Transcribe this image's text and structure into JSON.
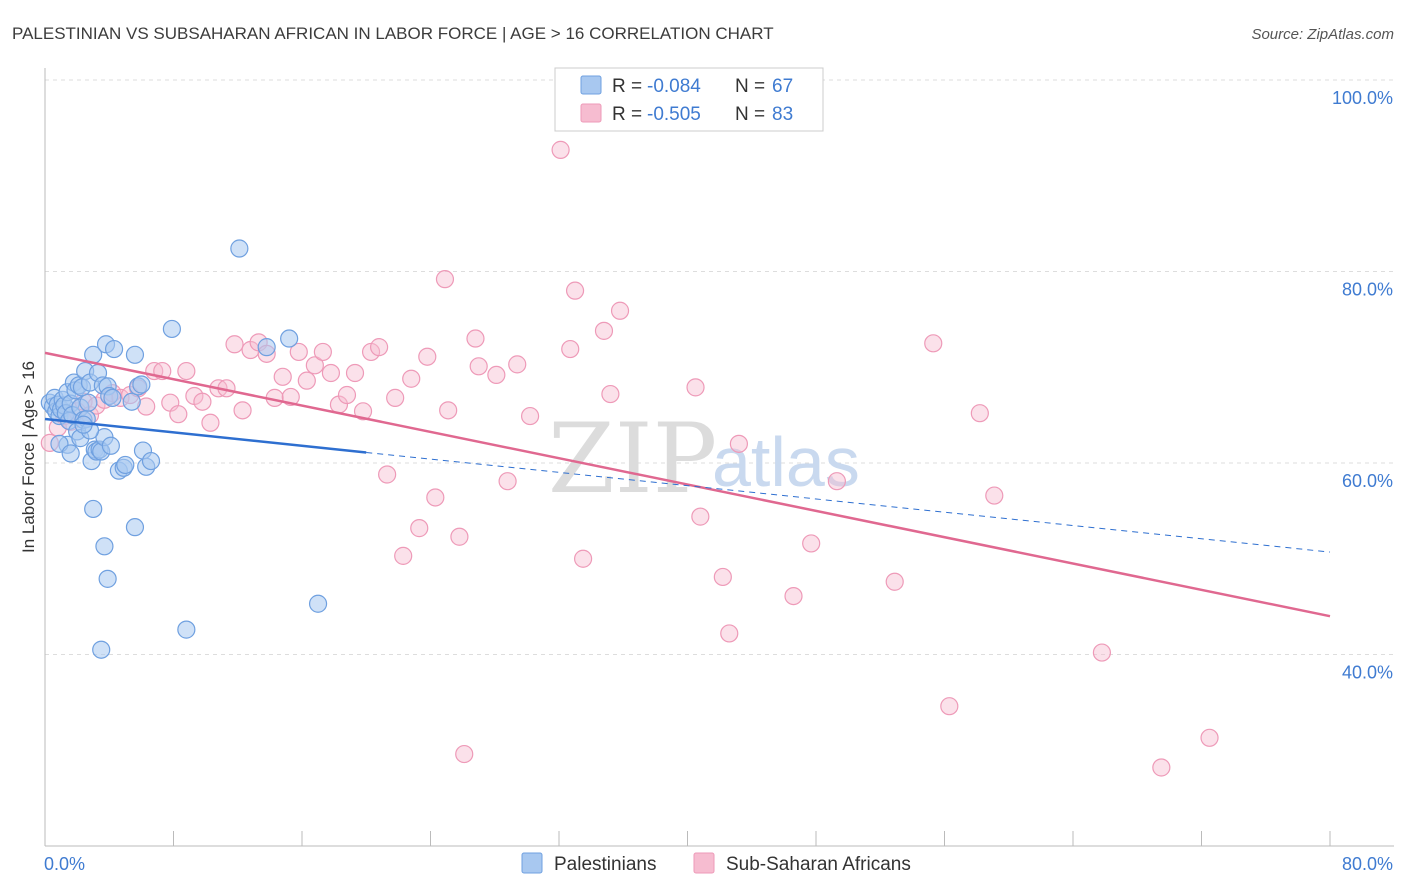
{
  "header": {
    "title": "PALESTINIAN VS SUBSAHARAN AFRICAN IN LABOR FORCE | AGE > 16 CORRELATION CHART",
    "source": "Source: ZipAtlas.com"
  },
  "watermark": {
    "zip": "ZIP",
    "atlas": "atlas"
  },
  "colors": {
    "palestinian_fill": "#a8c8f0",
    "palestinian_stroke": "#6fa0e0",
    "palestinian_line": "#2e6fd0",
    "subsaharan_fill": "#f6bcd0",
    "subsaharan_stroke": "#ee9ab8",
    "subsaharan_line": "#e06890",
    "grid": "#dddddd",
    "tick_text": "#3f7bd1"
  },
  "legend_top": {
    "rows": [
      {
        "r_label": "R = ",
        "r_value": "-0.084",
        "n_label": "N = ",
        "n_value": "67"
      },
      {
        "r_label": "R = ",
        "r_value": "-0.505",
        "n_label": "N = ",
        "n_value": "83"
      }
    ]
  },
  "legend_bottom": {
    "items": [
      "Palestinians",
      "Sub-Saharan Africans"
    ]
  },
  "chart_data": {
    "type": "scatter",
    "title": "PALESTINIAN VS SUBSAHARAN AFRICAN IN LABOR FORCE | AGE > 16 CORRELATION CHART",
    "xlabel": "",
    "ylabel": "In Labor Force | Age > 16",
    "xlim": [
      0,
      80
    ],
    "ylim": [
      20,
      100
    ],
    "x_tick_labels": [
      "0.0%",
      "80.0%"
    ],
    "y_tick_values": [
      40,
      60,
      80,
      100
    ],
    "y_tick_labels": [
      "40.0%",
      "60.0%",
      "80.0%",
      "100.0%"
    ],
    "grid": true,
    "legend_position": "top-center",
    "series": [
      {
        "name": "Palestinians",
        "r": -0.084,
        "n": 67,
        "trend": {
          "x0": 0,
          "y0": 64.6,
          "x1": 20,
          "y1": 61.1,
          "dashed_to_x": 80,
          "dashed_y_end": 50.7
        },
        "points": [
          [
            0.3,
            66.3
          ],
          [
            0.5,
            65.9
          ],
          [
            0.6,
            66.8
          ],
          [
            0.7,
            65.4
          ],
          [
            0.8,
            66.1
          ],
          [
            0.9,
            64.9
          ],
          [
            1.0,
            65.6
          ],
          [
            1.1,
            66.6
          ],
          [
            1.2,
            66.0
          ],
          [
            1.3,
            65.2
          ],
          [
            1.4,
            67.4
          ],
          [
            1.5,
            64.4
          ],
          [
            1.6,
            66.2
          ],
          [
            1.7,
            65.0
          ],
          [
            1.8,
            68.4
          ],
          [
            1.9,
            67.6
          ],
          [
            2.0,
            63.3
          ],
          [
            2.1,
            68.1
          ],
          [
            2.2,
            65.8
          ],
          [
            2.3,
            67.9
          ],
          [
            2.4,
            64.5
          ],
          [
            2.5,
            69.6
          ],
          [
            2.6,
            64.6
          ],
          [
            2.7,
            66.3
          ],
          [
            2.8,
            68.4
          ],
          [
            2.9,
            60.2
          ],
          [
            3.0,
            71.3
          ],
          [
            3.1,
            61.4
          ],
          [
            3.2,
            61.2
          ],
          [
            3.3,
            69.4
          ],
          [
            3.4,
            61.4
          ],
          [
            3.5,
            61.2
          ],
          [
            3.6,
            68.1
          ],
          [
            3.7,
            62.7
          ],
          [
            3.8,
            72.4
          ],
          [
            3.9,
            68.0
          ],
          [
            4.0,
            67.0
          ],
          [
            4.1,
            61.8
          ],
          [
            4.2,
            66.8
          ],
          [
            4.3,
            71.9
          ],
          [
            4.6,
            59.2
          ],
          [
            4.9,
            59.5
          ],
          [
            5.4,
            66.4
          ],
          [
            5.6,
            71.3
          ],
          [
            5.8,
            68.0
          ],
          [
            6.1,
            61.3
          ],
          [
            6.3,
            59.6
          ],
          [
            6.6,
            60.2
          ],
          [
            7.9,
            74.0
          ],
          [
            12.1,
            82.4
          ],
          [
            1.4,
            61.9
          ],
          [
            2.2,
            62.6
          ],
          [
            2.8,
            63.4
          ],
          [
            3.0,
            55.2
          ],
          [
            3.7,
            51.3
          ],
          [
            3.9,
            47.9
          ],
          [
            5.6,
            53.3
          ],
          [
            8.8,
            42.6
          ],
          [
            3.5,
            40.5
          ],
          [
            17.0,
            45.3
          ],
          [
            13.8,
            72.1
          ],
          [
            15.2,
            73.0
          ],
          [
            0.9,
            62.0
          ],
          [
            1.6,
            61.0
          ],
          [
            2.4,
            64.0
          ],
          [
            5.0,
            59.8
          ],
          [
            6.0,
            68.2
          ]
        ]
      },
      {
        "name": "Sub-Saharan Africans",
        "r": -0.505,
        "n": 83,
        "trend": {
          "x0": 0,
          "y0": 71.5,
          "x1": 80,
          "y1": 44.0
        },
        "points": [
          [
            0.3,
            62.1
          ],
          [
            0.8,
            63.7
          ],
          [
            1.2,
            64.9
          ],
          [
            1.6,
            64.3
          ],
          [
            2.0,
            65.4
          ],
          [
            2.4,
            66.4
          ],
          [
            2.8,
            65.0
          ],
          [
            3.2,
            66.0
          ],
          [
            3.7,
            66.6
          ],
          [
            4.2,
            67.3
          ],
          [
            4.7,
            66.8
          ],
          [
            5.3,
            67.1
          ],
          [
            5.8,
            67.8
          ],
          [
            6.3,
            65.9
          ],
          [
            6.8,
            69.6
          ],
          [
            7.3,
            69.6
          ],
          [
            7.8,
            66.3
          ],
          [
            8.3,
            65.1
          ],
          [
            8.8,
            69.6
          ],
          [
            9.3,
            67.0
          ],
          [
            9.8,
            66.4
          ],
          [
            10.3,
            64.2
          ],
          [
            10.8,
            67.8
          ],
          [
            11.3,
            67.8
          ],
          [
            11.8,
            72.4
          ],
          [
            12.3,
            65.5
          ],
          [
            12.8,
            71.8
          ],
          [
            13.3,
            72.6
          ],
          [
            13.8,
            71.4
          ],
          [
            14.3,
            66.8
          ],
          [
            14.8,
            69.0
          ],
          [
            15.3,
            66.9
          ],
          [
            15.8,
            71.6
          ],
          [
            16.3,
            68.6
          ],
          [
            16.8,
            70.2
          ],
          [
            17.3,
            71.6
          ],
          [
            17.8,
            69.4
          ],
          [
            18.3,
            66.1
          ],
          [
            18.8,
            67.1
          ],
          [
            19.3,
            69.4
          ],
          [
            19.8,
            65.4
          ],
          [
            20.3,
            71.6
          ],
          [
            20.8,
            72.1
          ],
          [
            21.3,
            58.8
          ],
          [
            21.8,
            66.8
          ],
          [
            22.3,
            50.3
          ],
          [
            22.8,
            68.8
          ],
          [
            23.3,
            53.2
          ],
          [
            23.8,
            71.1
          ],
          [
            24.3,
            56.4
          ],
          [
            25.1,
            65.5
          ],
          [
            25.8,
            52.3
          ],
          [
            26.1,
            29.6
          ],
          [
            26.8,
            73.0
          ],
          [
            27.0,
            70.1
          ],
          [
            28.1,
            69.2
          ],
          [
            28.8,
            58.1
          ],
          [
            29.4,
            70.3
          ],
          [
            30.2,
            64.9
          ],
          [
            32.1,
            92.7
          ],
          [
            32.7,
            71.9
          ],
          [
            33.0,
            78.0
          ],
          [
            33.5,
            50.0
          ],
          [
            34.8,
            73.8
          ],
          [
            35.2,
            67.2
          ],
          [
            35.8,
            75.9
          ],
          [
            40.5,
            67.9
          ],
          [
            40.8,
            54.4
          ],
          [
            42.2,
            48.1
          ],
          [
            42.6,
            42.2
          ],
          [
            43.2,
            62.0
          ],
          [
            46.6,
            46.1
          ],
          [
            47.7,
            51.6
          ],
          [
            49.3,
            58.1
          ],
          [
            52.9,
            47.6
          ],
          [
            55.3,
            72.5
          ],
          [
            56.3,
            34.6
          ],
          [
            58.2,
            65.2
          ],
          [
            59.1,
            56.6
          ],
          [
            65.8,
            40.2
          ],
          [
            24.9,
            79.2
          ],
          [
            69.5,
            28.2
          ],
          [
            72.5,
            31.3
          ]
        ]
      }
    ]
  }
}
